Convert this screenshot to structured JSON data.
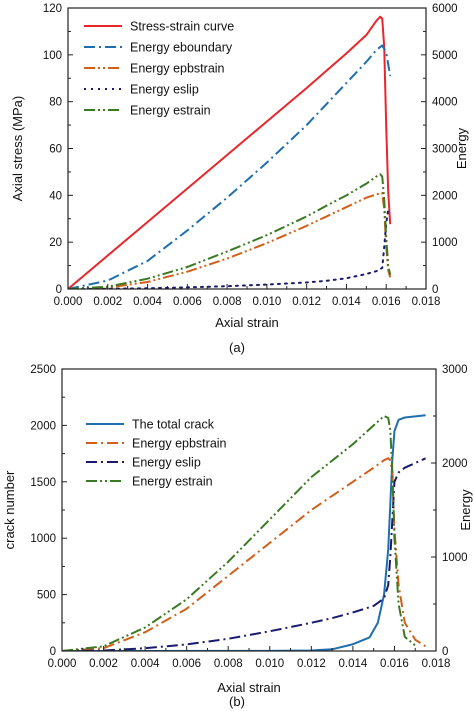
{
  "chart_data": [
    {
      "panel_label": "(a)",
      "type": "line",
      "xlabel": "Axial strain",
      "ylabel_left": "Axial stress (MPa)",
      "ylabel_right": "Energy",
      "xlim": [
        0,
        0.018
      ],
      "ylim_left": [
        0,
        130
      ],
      "ylim_right": [
        0,
        6000
      ],
      "x_ticks": [
        "0.000",
        "0.002",
        "0.004",
        "0.006",
        "0.008",
        "0.010",
        "0.012",
        "0.014",
        "0.016",
        "0.018"
      ],
      "y_left_ticks": [
        "0",
        "20",
        "40",
        "60",
        "80",
        "100",
        "120"
      ],
      "y_right_ticks": [
        "0",
        "1000",
        "2000",
        "3000",
        "4000",
        "5000",
        "6000"
      ],
      "grid": false,
      "legend_position": "top-left",
      "series": [
        {
          "name": "Stress-strain curve",
          "axis": "left",
          "color": "#e8262b",
          "dash": "solid",
          "x": [
            0,
            0.002,
            0.004,
            0.006,
            0.008,
            0.01,
            0.012,
            0.013,
            0.014,
            0.015,
            0.0155,
            0.0157,
            0.0158,
            0.0159,
            0.016,
            0.0161,
            0.0162
          ],
          "y": [
            0,
            15.5,
            31,
            46.5,
            62,
            77.5,
            93,
            101,
            109,
            117.5,
            124,
            126,
            125,
            112,
            75,
            45,
            30
          ]
        },
        {
          "name": "Energy eboundary",
          "axis": "right",
          "color": "#1f6fb0",
          "dash": "dashdot",
          "x": [
            0,
            0.002,
            0.004,
            0.006,
            0.008,
            0.01,
            0.012,
            0.013,
            0.014,
            0.015,
            0.0155,
            0.0158,
            0.016,
            0.0161,
            0.0162
          ],
          "y": [
            0,
            180,
            600,
            1250,
            1950,
            2700,
            3500,
            3950,
            4400,
            4850,
            5100,
            5200,
            5050,
            4800,
            4550
          ]
        },
        {
          "name": "Energy epbstrain",
          "axis": "right",
          "color": "#d35f18",
          "dash": "dashdotdot",
          "x": [
            0,
            0.002,
            0.004,
            0.006,
            0.008,
            0.01,
            0.012,
            0.013,
            0.014,
            0.015,
            0.0155,
            0.0158,
            0.0159,
            0.016,
            0.0161,
            0.0162
          ],
          "y": [
            0,
            30,
            150,
            370,
            650,
            980,
            1350,
            1550,
            1750,
            1950,
            2020,
            2050,
            1700,
            900,
            400,
            250
          ]
        },
        {
          "name": "Energy eslip",
          "axis": "right",
          "color": "#1a1a6e",
          "dash": "dotted",
          "x": [
            0,
            0.002,
            0.004,
            0.006,
            0.008,
            0.01,
            0.012,
            0.013,
            0.014,
            0.015,
            0.0155,
            0.0158,
            0.0159,
            0.016,
            0.0161
          ],
          "y": [
            0,
            5,
            15,
            35,
            60,
            95,
            140,
            175,
            230,
            320,
            380,
            450,
            900,
            1400,
            1700
          ]
        },
        {
          "name": "Energy estrain",
          "axis": "right",
          "color": "#3a7a22",
          "dash": "dashdotdot",
          "x": [
            0,
            0.002,
            0.004,
            0.006,
            0.008,
            0.01,
            0.012,
            0.013,
            0.014,
            0.015,
            0.0155,
            0.0157,
            0.0158,
            0.0159,
            0.016,
            0.0161,
            0.0162
          ],
          "y": [
            0,
            50,
            220,
            470,
            800,
            1150,
            1550,
            1780,
            2000,
            2250,
            2400,
            2450,
            2400,
            1900,
            1100,
            500,
            300
          ]
        }
      ]
    },
    {
      "panel_label": "(b)",
      "type": "line",
      "xlabel": "Axial strain",
      "ylabel_left": "crack number",
      "ylabel_right": "Energy",
      "xlim": [
        0,
        0.018
      ],
      "ylim_left": [
        0,
        2500
      ],
      "ylim_right": [
        0,
        3000
      ],
      "x_ticks": [
        "0.000",
        "0.002",
        "0.004",
        "0.006",
        "0.008",
        "0.010",
        "0.012",
        "0.014",
        "0.016",
        "0.018"
      ],
      "y_left_ticks": [
        "0",
        "500",
        "1000",
        "1500",
        "2000",
        "2500"
      ],
      "y_right_ticks": [
        "0",
        "1000",
        "2000",
        "3000"
      ],
      "grid": false,
      "legend_position": "upper-left",
      "series": [
        {
          "name": "The total crack",
          "axis": "left",
          "color": "#1f6fb0",
          "dash": "solid",
          "x": [
            0,
            0.01,
            0.012,
            0.013,
            0.014,
            0.0148,
            0.0152,
            0.0155,
            0.0157,
            0.0158,
            0.0159,
            0.016,
            0.0162,
            0.0165,
            0.017,
            0.0175
          ],
          "y": [
            0,
            1,
            5,
            15,
            60,
            120,
            250,
            500,
            900,
            1300,
            1700,
            1950,
            2050,
            2070,
            2080,
            2090
          ]
        },
        {
          "name": "Energy epbstrain",
          "axis": "right",
          "color": "#d35f18",
          "dash": "dashdot",
          "x": [
            0,
            0.002,
            0.004,
            0.006,
            0.008,
            0.01,
            0.012,
            0.014,
            0.015,
            0.0155,
            0.0157,
            0.0158,
            0.0159,
            0.016,
            0.0162,
            0.0165,
            0.017,
            0.0175
          ],
          "y": [
            0,
            30,
            200,
            450,
            800,
            1150,
            1500,
            1800,
            1950,
            2030,
            2050,
            2030,
            1900,
            1300,
            700,
            300,
            120,
            50
          ]
        },
        {
          "name": "Energy eslip",
          "axis": "right",
          "color": "#1a1a6e",
          "dash": "dashdot",
          "x": [
            0,
            0.002,
            0.004,
            0.006,
            0.008,
            0.01,
            0.012,
            0.013,
            0.014,
            0.015,
            0.0155,
            0.0157,
            0.0158,
            0.0159,
            0.016,
            0.0162,
            0.0165,
            0.017,
            0.0175
          ],
          "y": [
            0,
            5,
            30,
            70,
            130,
            210,
            300,
            350,
            410,
            480,
            560,
            700,
            1000,
            1400,
            1800,
            1900,
            1950,
            2000,
            2050
          ]
        },
        {
          "name": "Energy estrain",
          "axis": "right",
          "color": "#3a7a22",
          "dash": "dashdotdot",
          "x": [
            0,
            0.002,
            0.004,
            0.006,
            0.008,
            0.01,
            0.012,
            0.014,
            0.015,
            0.0155,
            0.0157,
            0.0158,
            0.0159,
            0.016,
            0.0162,
            0.0165,
            0.017
          ],
          "y": [
            0,
            50,
            250,
            550,
            950,
            1400,
            1850,
            2200,
            2400,
            2500,
            2480,
            2350,
            1900,
            1200,
            500,
            150,
            60
          ]
        }
      ]
    }
  ]
}
